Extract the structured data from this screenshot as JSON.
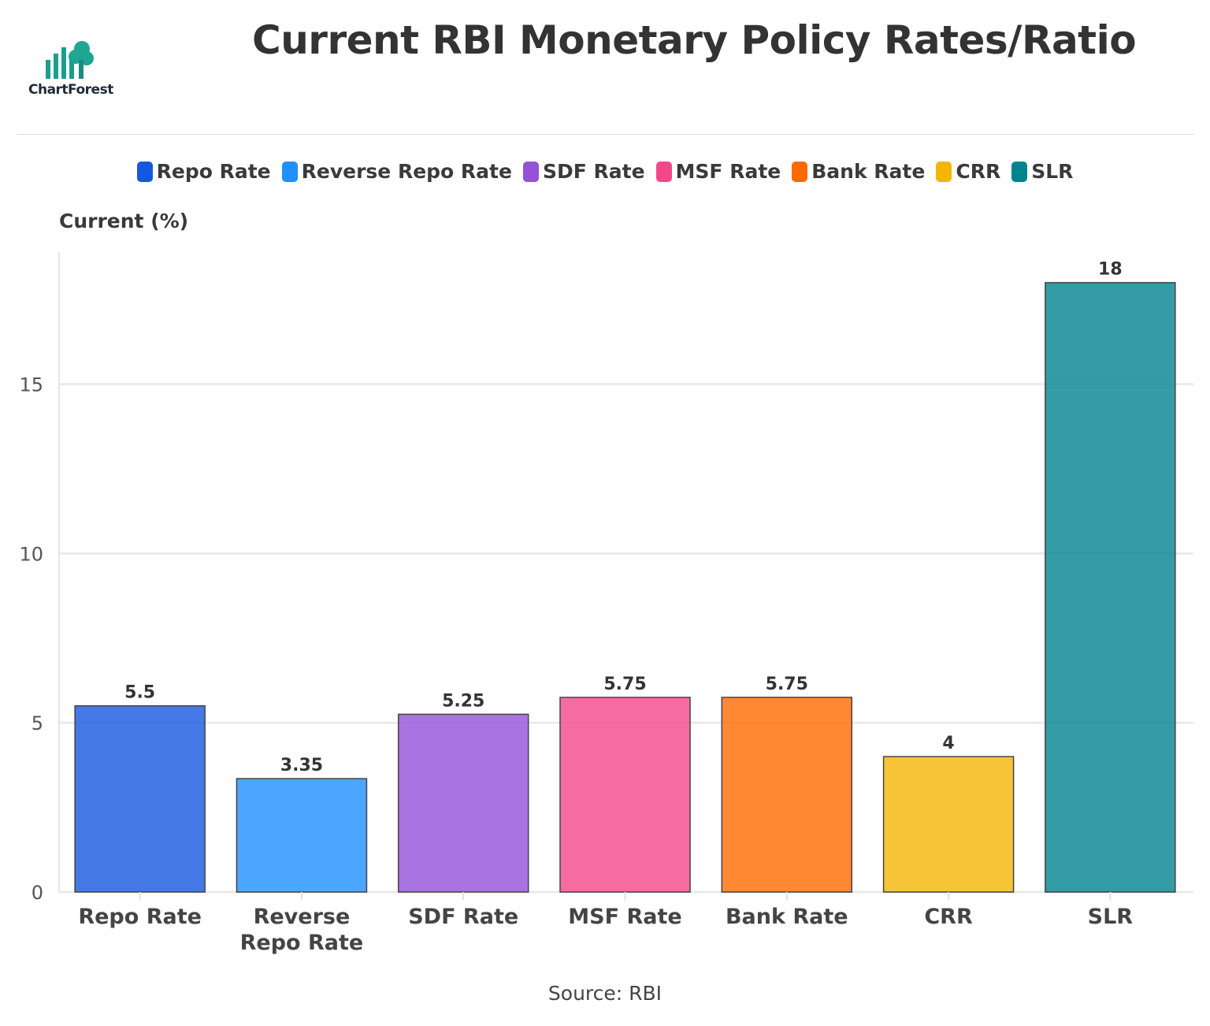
{
  "title": "Current RBI Monetary Policy Rates/Ratio",
  "logo": {
    "text": "ChartForest"
  },
  "source": "Source: RBI",
  "chart_data": {
    "type": "bar",
    "title": "Current RBI Monetary Policy Rates/Ratio",
    "ylabel": "Current (%)",
    "xlabel": "",
    "categories": [
      "Repo Rate",
      "Reverse Repo Rate",
      "SDF Rate",
      "MSF Rate",
      "Bank Rate",
      "CRR",
      "SLR"
    ],
    "category_lines": [
      [
        "Repo Rate"
      ],
      [
        "Reverse",
        "Repo Rate"
      ],
      [
        "SDF Rate"
      ],
      [
        "MSF Rate"
      ],
      [
        "Bank Rate"
      ],
      [
        "CRR"
      ],
      [
        "SLR"
      ]
    ],
    "values": [
      5.5,
      3.35,
      5.25,
      5.75,
      5.75,
      4,
      18
    ],
    "data_labels": [
      "5.5",
      "3.35",
      "5.25",
      "5.75",
      "5.75",
      "4",
      "18"
    ],
    "colors": [
      "#1558e0",
      "#1e90ff",
      "#9351d9",
      "#f4478a",
      "#ff6a00",
      "#f2b705",
      "#00838f"
    ],
    "yticks": [
      0,
      5,
      10,
      15
    ],
    "ylim": [
      0,
      18.9
    ],
    "grid": true,
    "legend": {
      "position": "top",
      "entries": [
        "Repo Rate",
        "Reverse Repo Rate",
        "SDF Rate",
        "MSF Rate",
        "Bank Rate",
        "CRR",
        "SLR"
      ]
    }
  }
}
